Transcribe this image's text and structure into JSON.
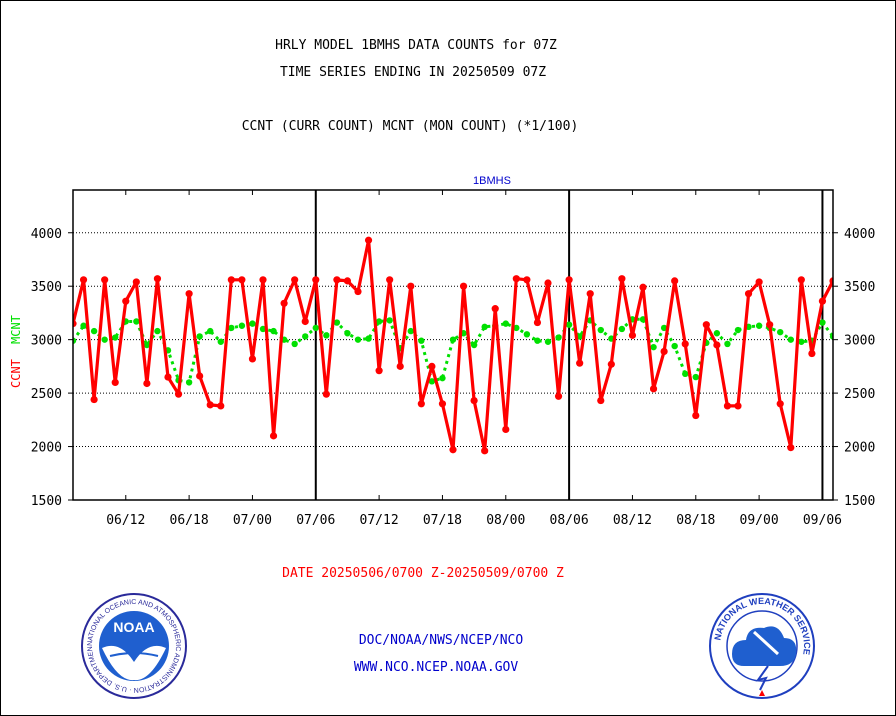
{
  "header": {
    "title_line1": "HRLY MODEL 1BMHS DATA COUNTS for 07Z",
    "title_line2": "TIME SERIES ENDING IN 20250509 07Z",
    "subtitle": "CCNT (CURR COUNT) MCNT (MON COUNT) (*1/100)"
  },
  "footer": {
    "date_range": "DATE 20250506/0700 Z-20250509/0700 Z",
    "org_line": "DOC/NOAA/NWS/NCEP/NCO",
    "url_line": "WWW.NCO.NCEP.NOAA.GOV"
  },
  "logos": {
    "noaa": {
      "text": "NOAA",
      "ring_text": "NATIONAL OCEANIC AND ATMOSPHERIC ADMINISTRATION · U.S. DEPARTMENT OF COMMERCE ·"
    },
    "nws": {
      "ring_text": "NATIONAL WEATHER SERVICE"
    }
  },
  "colors": {
    "ccnt": "#ff0000",
    "mcnt": "#00e000",
    "axis": "#000000",
    "panel_title": "#0000cc",
    "footer_red": "#ff0000",
    "footer_blue": "#0000cc"
  },
  "chart_data": {
    "type": "line",
    "title": "1BMHS",
    "ylabel_left": [
      "CCNT",
      "MCNT"
    ],
    "ylim": [
      1500,
      4400
    ],
    "yticks": [
      1500,
      2000,
      2500,
      3000,
      3500,
      4000
    ],
    "xticks": [
      "06/12",
      "06/18",
      "07/00",
      "07/06",
      "07/12",
      "07/18",
      "08/00",
      "08/06",
      "08/12",
      "08/18",
      "09/00",
      "09/06"
    ],
    "xtick_index": [
      5,
      11,
      17,
      23,
      29,
      35,
      41,
      47,
      53,
      59,
      65,
      71
    ],
    "day_boundaries_index": [
      23,
      47,
      71
    ],
    "x_index_range": [
      0,
      72
    ],
    "grid": "horizontal dotted",
    "series": [
      {
        "name": "CCNT",
        "color": "#ff0000",
        "values": [
          3150,
          3560,
          2440,
          3560,
          2600,
          3360,
          3540,
          2590,
          3570,
          2650,
          2490,
          3430,
          2660,
          2390,
          2380,
          3560,
          3560,
          2820,
          3560,
          2100,
          3340,
          3560,
          3170,
          3560,
          2490,
          3560,
          3550,
          3450,
          3930,
          2710,
          3560,
          2750,
          3500,
          2400,
          2750,
          2400,
          1970,
          3500,
          2430,
          1960,
          3290,
          2160,
          3570,
          3560,
          3160,
          3530,
          2470,
          3560,
          2780,
          3430,
          2430,
          2770,
          3570,
          3040,
          3490,
          2540,
          2890,
          3550,
          2960,
          2290,
          3140,
          2950,
          2380,
          2380,
          3430,
          3540,
          3140,
          2400,
          1990,
          3560,
          2870,
          3360,
          3550
        ]
      },
      {
        "name": "MCNT",
        "color": "#00e000",
        "values": [
          2990,
          3130,
          3080,
          3000,
          3020,
          3170,
          3170,
          2950,
          3080,
          2900,
          2620,
          2600,
          3030,
          3080,
          2980,
          3110,
          3130,
          3150,
          3100,
          3080,
          3000,
          2960,
          3030,
          3110,
          3040,
          3160,
          3060,
          3000,
          3010,
          3170,
          3180,
          2920,
          3080,
          2990,
          2610,
          2640,
          3000,
          3060,
          2950,
          3120,
          3130,
          3150,
          3110,
          3050,
          2990,
          2980,
          3020,
          3140,
          3030,
          3180,
          3090,
          3010,
          3100,
          3190,
          3190,
          2930,
          3110,
          2940,
          2680,
          2650,
          2970,
          3060,
          2960,
          3090,
          3120,
          3130,
          3110,
          3070,
          3000,
          2980,
          2990,
          3160,
          3030
        ]
      }
    ]
  }
}
